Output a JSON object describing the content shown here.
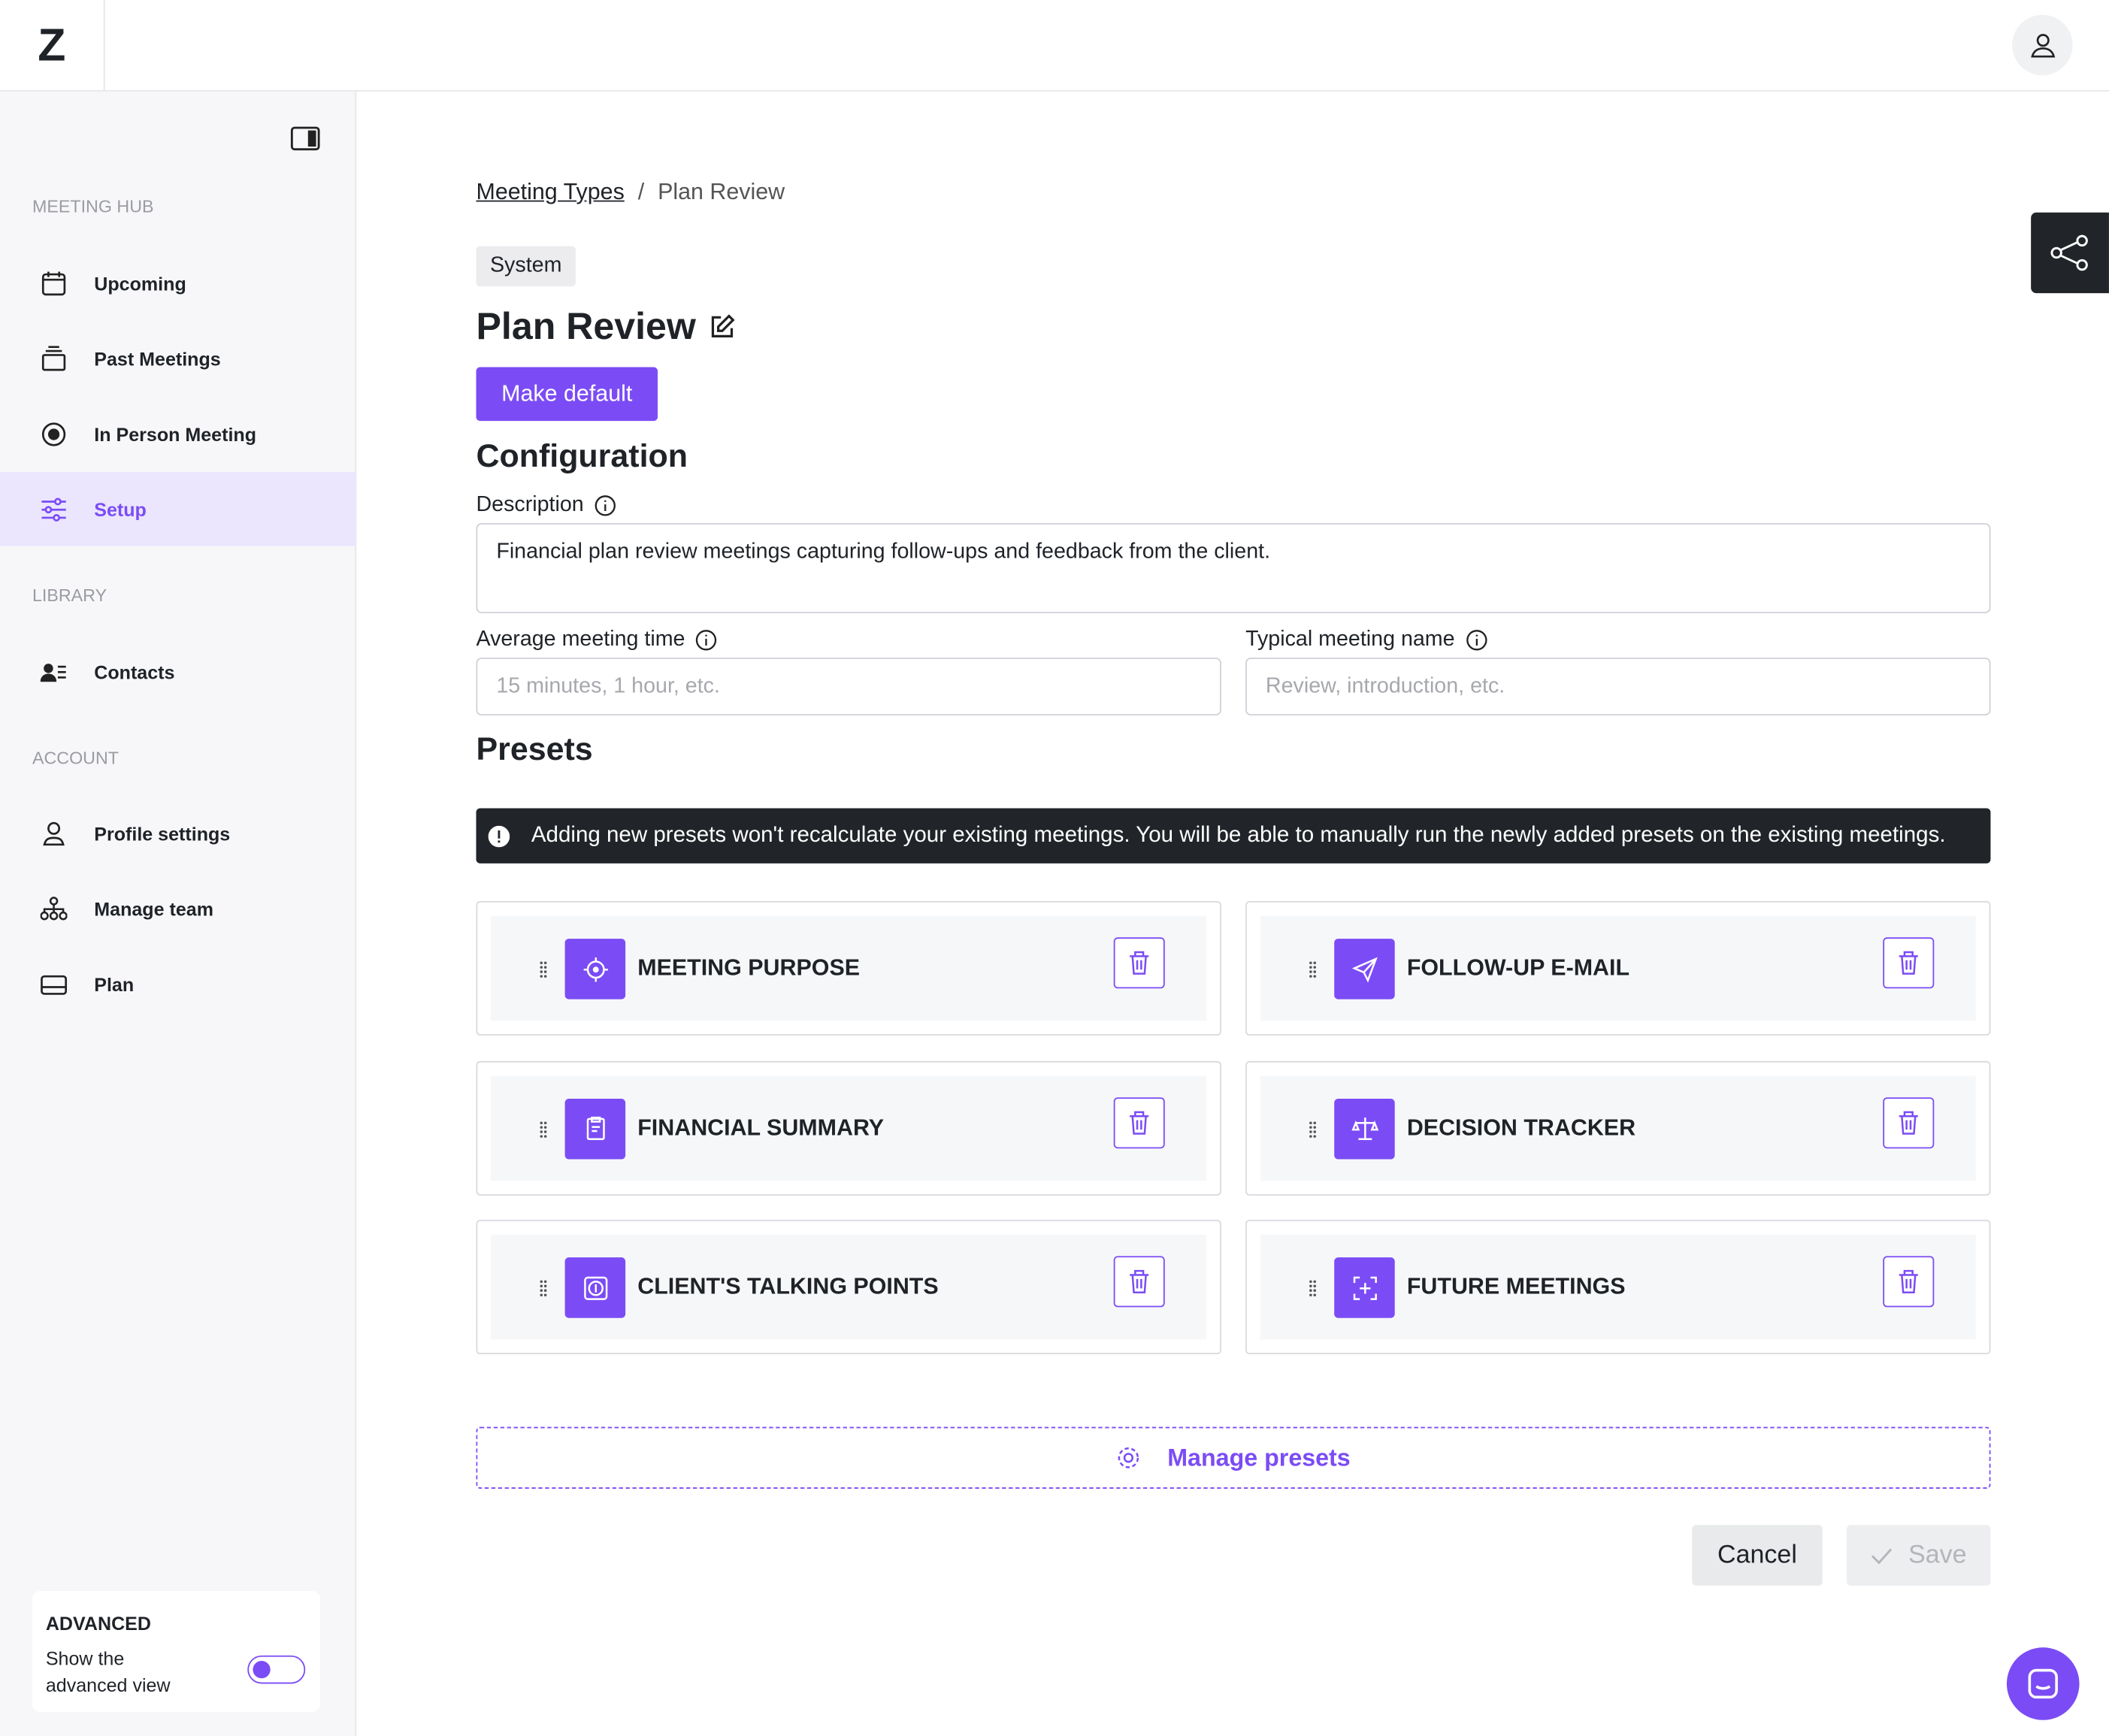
{
  "header": {
    "logo": "Z"
  },
  "sidebar": {
    "sections": [
      {
        "title": "MEETING HUB",
        "items": [
          "Upcoming",
          "Past Meetings",
          "In Person Meeting",
          "Setup"
        ]
      },
      {
        "title": "LIBRARY",
        "items": [
          "Contacts"
        ]
      },
      {
        "title": "ACCOUNT",
        "items": [
          "Profile settings",
          "Manage team",
          "Plan"
        ]
      }
    ],
    "advanced": {
      "title": "ADVANCED",
      "text": "Show the advanced view"
    }
  },
  "breadcrumb": {
    "items": [
      "Meeting Types",
      "Plan Review"
    ],
    "separator": "/"
  },
  "badge": "System",
  "title": "Plan Review",
  "make_default": "Make default",
  "configuration": {
    "heading": "Configuration",
    "description": {
      "label": "Description",
      "value": "Financial plan review meetings capturing follow-ups and feedback from the client."
    },
    "average_time": {
      "label": "Average meeting time",
      "placeholder": "15 minutes, 1 hour, etc."
    },
    "typical_name": {
      "label": "Typical meeting name",
      "placeholder": "Review, introduction, etc."
    }
  },
  "presets": {
    "heading": "Presets",
    "notice": "Adding new presets won't recalculate your existing meetings. You will be able to manually run the newly added presets on the existing meetings.",
    "items": [
      "MEETING PURPOSE",
      "FOLLOW-UP E-MAIL",
      "FINANCIAL SUMMARY",
      "DECISION TRACKER",
      "CLIENT'S TALKING POINTS",
      "FUTURE MEETINGS"
    ],
    "manage": "Manage presets"
  },
  "actions": {
    "cancel": "Cancel",
    "save": "Save"
  }
}
